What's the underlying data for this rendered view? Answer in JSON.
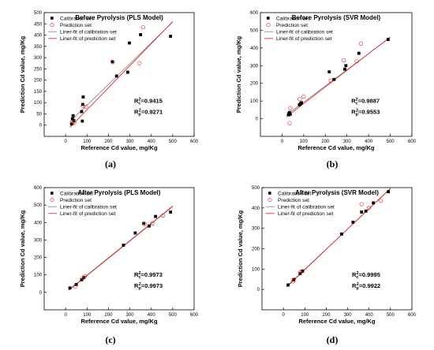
{
  "figure": {
    "colors": {
      "calibration": "#000000",
      "prediction": "#e31a1c",
      "calibration_fit": "#808080",
      "prediction_fit": "#e31a1c"
    }
  },
  "chart_data": [
    {
      "type": "scatter",
      "title": "Before Pyrolysis (PLS Model)",
      "subfig_label": "(a)",
      "xlabel": "Reference Cd value, mg/Kg",
      "ylabel": "Prediction Cd value, mg/Kg",
      "xlim": [
        -100,
        600
      ],
      "ylim": [
        -50,
        500
      ],
      "xticks": [
        0,
        100,
        200,
        300,
        400,
        500,
        600
      ],
      "yticks": [
        0,
        50,
        100,
        150,
        200,
        250,
        300,
        350,
        400,
        450,
        500
      ],
      "legend_position": "top-left",
      "legend": [
        "Calibration set",
        "Prediction set",
        "Liner-fit of calibration set",
        "Liner-fit of prediction set"
      ],
      "stats": {
        "rc": "R_c^2=0.9415",
        "rp": "R_p^2=0.9271"
      },
      "series": [
        {
          "name": "Calibration set",
          "marker": "square",
          "x": [
            28,
            32,
            35,
            38,
            75,
            78,
            80,
            82,
            218,
            238,
            290,
            298,
            350,
            490
          ],
          "y": [
            5,
            28,
            42,
            20,
            60,
            18,
            92,
            125,
            282,
            218,
            235,
            365,
            402,
            395
          ]
        },
        {
          "name": "Prediction set",
          "marker": "circle",
          "x": [
            30,
            40,
            80,
            95,
            220,
            345,
            362
          ],
          "y": [
            8,
            12,
            85,
            82,
            280,
            275,
            435
          ]
        }
      ],
      "fits": [
        {
          "name": "Liner-fit of calibration set",
          "x": [
            20,
            500
          ],
          "y": [
            15,
            458
          ]
        },
        {
          "name": "Liner-fit of prediction set",
          "x": [
            20,
            500
          ],
          "y": [
            -10,
            460
          ]
        }
      ]
    },
    {
      "type": "scatter",
      "title": "Before Pyrolysis (SVR Model)",
      "subfig_label": "(b)",
      "xlabel": "Reference Cd value, mg/Kg",
      "ylabel": "Prediction Cd value, mg/Kg",
      "xlim": [
        -100,
        600
      ],
      "ylim": [
        -100,
        600
      ],
      "xticks": [
        0,
        100,
        200,
        300,
        400,
        500,
        600
      ],
      "yticks": [
        0,
        100,
        200,
        300,
        400,
        500,
        600
      ],
      "legend_position": "top-left",
      "legend": [
        "Calibration set",
        "Prediction set",
        "Liner-fit of calibration set",
        "Liner-fit of prediction set"
      ],
      "stats": {
        "rc": "R_c^2=0.9887",
        "rp": "R_p^2=0.9553"
      },
      "series": [
        {
          "name": "Calibration set",
          "marker": "square",
          "x": [
            30,
            32,
            35,
            38,
            80,
            85,
            90,
            218,
            240,
            290,
            295,
            355,
            490
          ],
          "y": [
            22,
            30,
            35,
            25,
            78,
            85,
            90,
            265,
            222,
            280,
            300,
            370,
            448
          ]
        },
        {
          "name": "Prediction set",
          "marker": "circle",
          "x": [
            35,
            38,
            82,
            100,
            225,
            285,
            345,
            365
          ],
          "y": [
            -25,
            60,
            110,
            125,
            215,
            330,
            325,
            425
          ]
        }
      ],
      "fits": [
        {
          "name": "Liner-fit of calibration set",
          "x": [
            20,
            500
          ],
          "y": [
            20,
            460
          ]
        },
        {
          "name": "Liner-fit of prediction set",
          "x": [
            20,
            500
          ],
          "y": [
            10,
            462
          ]
        }
      ]
    },
    {
      "type": "scatter",
      "title": "After Pyrolysis (PLS Model)",
      "subfig_label": "(c)",
      "xlabel": "Reference Cd value, mg/Kg",
      "ylabel": "Prediction Cd value, mg/Kg",
      "xlim": [
        -100,
        600
      ],
      "ylim": [
        -100,
        600
      ],
      "xticks": [
        0,
        100,
        200,
        300,
        400,
        500,
        600
      ],
      "yticks": [
        0,
        100,
        200,
        300,
        400,
        500,
        600
      ],
      "legend_position": "top-left",
      "legend": [
        "Calibration set",
        "Prediction set",
        "Liner-fit of calibration set",
        "Liner-fit of prediction set"
      ],
      "stats": {
        "rc": "R_c^2=0.9973",
        "rp": "R_p^2=0.9973"
      },
      "series": [
        {
          "name": "Calibration set",
          "marker": "square",
          "x": [
            20,
            50,
            75,
            85,
            270,
            325,
            365,
            390,
            420,
            490
          ],
          "y": [
            25,
            45,
            72,
            85,
            270,
            340,
            395,
            380,
            435,
            460
          ]
        },
        {
          "name": "Prediction set",
          "marker": "circle",
          "x": [
            45,
            80,
            90,
            370,
            405,
            455
          ],
          "y": [
            35,
            80,
            92,
            390,
            395,
            440
          ]
        }
      ],
      "fits": [
        {
          "name": "Liner-fit of calibration set",
          "x": [
            15,
            500
          ],
          "y": [
            15,
            495
          ]
        },
        {
          "name": "Liner-fit of prediction set",
          "x": [
            15,
            500
          ],
          "y": [
            12,
            492
          ]
        }
      ]
    },
    {
      "type": "scatter",
      "title": "After Pyrolysis (SVR Model)",
      "subfig_label": "(d)",
      "xlabel": "Reference Cd value, mg/Kg",
      "ylabel": "Prediction Cd value, mg/Kg",
      "xlim": [
        -100,
        600
      ],
      "ylim": [
        -100,
        500
      ],
      "xticks": [
        0,
        100,
        200,
        300,
        400,
        500,
        600
      ],
      "yticks": [
        0,
        100,
        200,
        300,
        400,
        500
      ],
      "legend_position": "top-left",
      "legend": [
        "Calibration set",
        "Prediction set",
        "Liner-fit of calibration set",
        "Liner-fit of prediction set"
      ],
      "stats": {
        "rc": "R_c^2=0.9995",
        "rp": "R_p^2=0.9922"
      },
      "series": [
        {
          "name": "Calibration set",
          "marker": "square",
          "x": [
            22,
            48,
            78,
            90,
            272,
            325,
            365,
            385,
            420,
            490
          ],
          "y": [
            22,
            48,
            78,
            90,
            272,
            330,
            380,
            385,
            425,
            480
          ]
        },
        {
          "name": "Prediction set",
          "marker": "circle",
          "x": [
            45,
            50,
            80,
            88,
            365,
            400,
            455
          ],
          "y": [
            40,
            48,
            85,
            90,
            418,
            400,
            435
          ]
        }
      ],
      "fits": [
        {
          "name": "Liner-fit of calibration set",
          "x": [
            15,
            500
          ],
          "y": [
            15,
            495
          ]
        },
        {
          "name": "Liner-fit of prediction set",
          "x": [
            15,
            500
          ],
          "y": [
            12,
            497
          ]
        }
      ]
    }
  ]
}
